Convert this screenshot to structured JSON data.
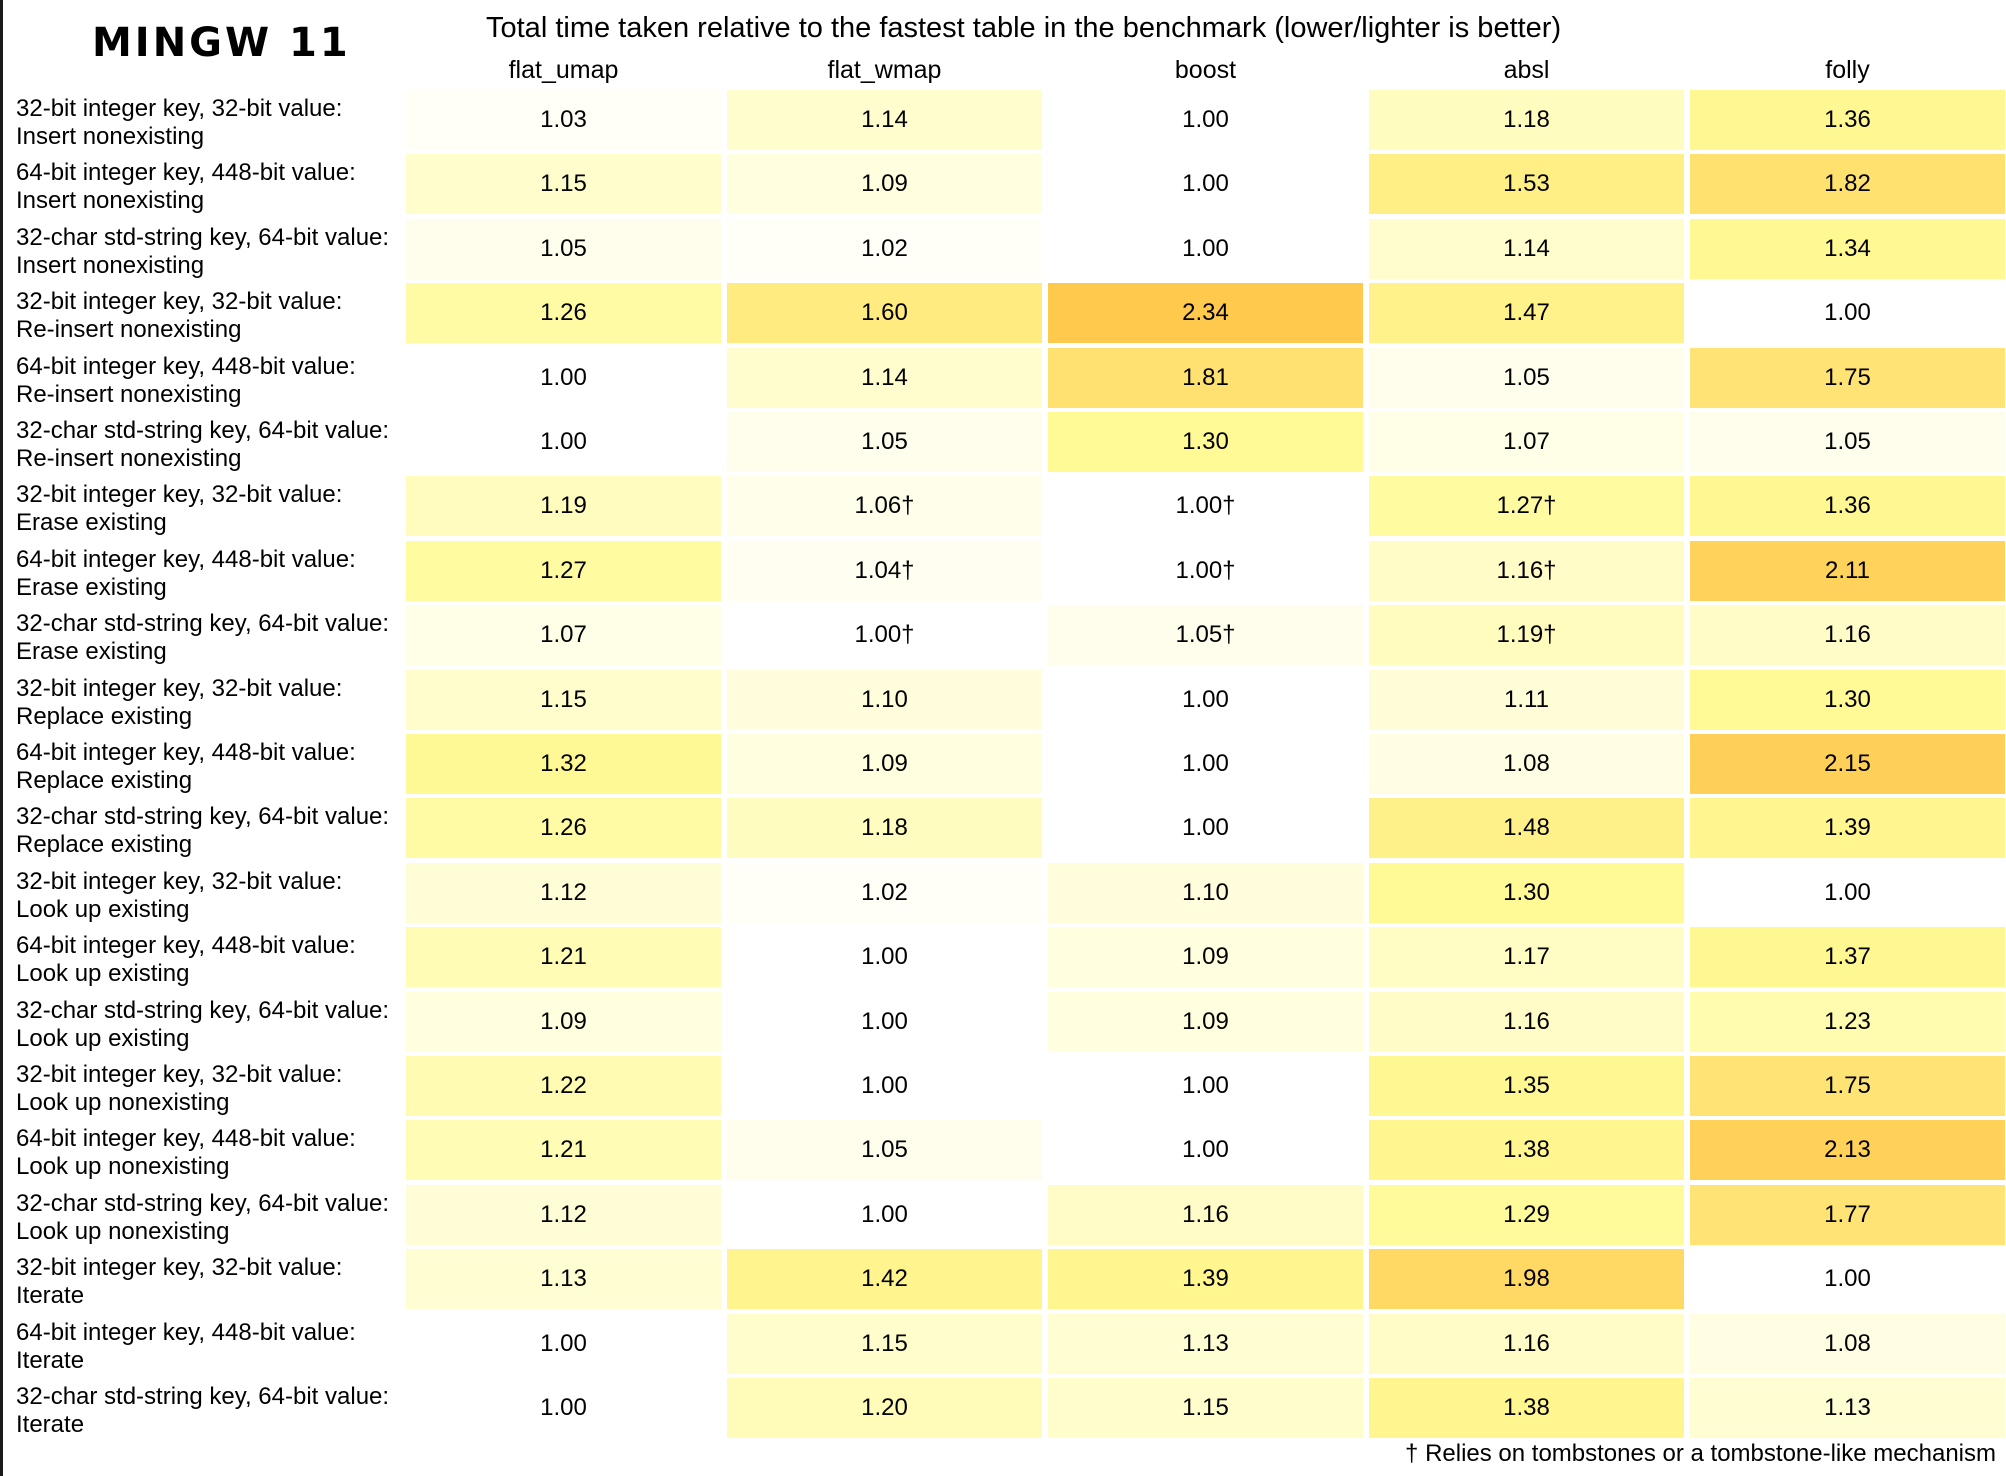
{
  "section_title": "MINGW 11",
  "footnote": "† Relies on tombstones or a tombstone-like mechanism",
  "chart_data": {
    "type": "heatmap",
    "title": "Total time taken relative to the fastest table in the benchmark (lower/lighter is better)",
    "columns": [
      "flat_umap",
      "flat_wmap",
      "boost",
      "absl",
      "folly"
    ],
    "rows": [
      {
        "label_line1": "32-bit integer key, 32-bit value:",
        "label_line2": "Insert nonexisting",
        "values": [
          1.03,
          1.14,
          1.0,
          1.18,
          1.36
        ],
        "display": [
          "1.03",
          "1.14",
          "1.00",
          "1.18",
          "1.36"
        ]
      },
      {
        "label_line1": "64-bit integer key, 448-bit value:",
        "label_line2": "Insert nonexisting",
        "values": [
          1.15,
          1.09,
          1.0,
          1.53,
          1.82
        ],
        "display": [
          "1.15",
          "1.09",
          "1.00",
          "1.53",
          "1.82"
        ]
      },
      {
        "label_line1": "32-char std-string key, 64-bit value:",
        "label_line2": "Insert nonexisting",
        "values": [
          1.05,
          1.02,
          1.0,
          1.14,
          1.34
        ],
        "display": [
          "1.05",
          "1.02",
          "1.00",
          "1.14",
          "1.34"
        ]
      },
      {
        "label_line1": "32-bit integer key, 32-bit value:",
        "label_line2": "Re-insert nonexisting",
        "values": [
          1.26,
          1.6,
          2.34,
          1.47,
          1.0
        ],
        "display": [
          "1.26",
          "1.60",
          "2.34",
          "1.47",
          "1.00"
        ]
      },
      {
        "label_line1": "64-bit integer key, 448-bit value:",
        "label_line2": "Re-insert nonexisting",
        "values": [
          1.0,
          1.14,
          1.81,
          1.05,
          1.75
        ],
        "display": [
          "1.00",
          "1.14",
          "1.81",
          "1.05",
          "1.75"
        ]
      },
      {
        "label_line1": "32-char std-string key, 64-bit value:",
        "label_line2": "Re-insert nonexisting",
        "values": [
          1.0,
          1.05,
          1.3,
          1.07,
          1.05
        ],
        "display": [
          "1.00",
          "1.05",
          "1.30",
          "1.07",
          "1.05"
        ]
      },
      {
        "label_line1": "32-bit integer key, 32-bit value:",
        "label_line2": "Erase existing",
        "values": [
          1.19,
          1.06,
          1.0,
          1.27,
          1.36
        ],
        "display": [
          "1.19",
          "1.06†",
          "1.00†",
          "1.27†",
          "1.36"
        ]
      },
      {
        "label_line1": "64-bit integer key, 448-bit value:",
        "label_line2": "Erase existing",
        "values": [
          1.27,
          1.04,
          1.0,
          1.16,
          2.11
        ],
        "display": [
          "1.27",
          "1.04†",
          "1.00†",
          "1.16†",
          "2.11"
        ]
      },
      {
        "label_line1": "32-char std-string key, 64-bit value:",
        "label_line2": "Erase existing",
        "values": [
          1.07,
          1.0,
          1.05,
          1.19,
          1.16
        ],
        "display": [
          "1.07",
          "1.00†",
          "1.05†",
          "1.19†",
          "1.16"
        ]
      },
      {
        "label_line1": "32-bit integer key, 32-bit value:",
        "label_line2": "Replace existing",
        "values": [
          1.15,
          1.1,
          1.0,
          1.11,
          1.3
        ],
        "display": [
          "1.15",
          "1.10",
          "1.00",
          "1.11",
          "1.30"
        ]
      },
      {
        "label_line1": "64-bit integer key, 448-bit value:",
        "label_line2": "Replace existing",
        "values": [
          1.32,
          1.09,
          1.0,
          1.08,
          2.15
        ],
        "display": [
          "1.32",
          "1.09",
          "1.00",
          "1.08",
          "2.15"
        ]
      },
      {
        "label_line1": "32-char std-string key, 64-bit value:",
        "label_line2": "Replace existing",
        "values": [
          1.26,
          1.18,
          1.0,
          1.48,
          1.39
        ],
        "display": [
          "1.26",
          "1.18",
          "1.00",
          "1.48",
          "1.39"
        ]
      },
      {
        "label_line1": "32-bit integer key, 32-bit value:",
        "label_line2": "Look up existing",
        "values": [
          1.12,
          1.02,
          1.1,
          1.3,
          1.0
        ],
        "display": [
          "1.12",
          "1.02",
          "1.10",
          "1.30",
          "1.00"
        ]
      },
      {
        "label_line1": "64-bit integer key, 448-bit value:",
        "label_line2": "Look up existing",
        "values": [
          1.21,
          1.0,
          1.09,
          1.17,
          1.37
        ],
        "display": [
          "1.21",
          "1.00",
          "1.09",
          "1.17",
          "1.37"
        ]
      },
      {
        "label_line1": "32-char std-string key, 64-bit value:",
        "label_line2": "Look up existing",
        "values": [
          1.09,
          1.0,
          1.09,
          1.16,
          1.23
        ],
        "display": [
          "1.09",
          "1.00",
          "1.09",
          "1.16",
          "1.23"
        ]
      },
      {
        "label_line1": "32-bit integer key, 32-bit value:",
        "label_line2": "Look up nonexisting",
        "values": [
          1.22,
          1.0,
          1.0,
          1.35,
          1.75
        ],
        "display": [
          "1.22",
          "1.00",
          "1.00",
          "1.35",
          "1.75"
        ]
      },
      {
        "label_line1": "64-bit integer key, 448-bit value:",
        "label_line2": "Look up nonexisting",
        "values": [
          1.21,
          1.05,
          1.0,
          1.38,
          2.13
        ],
        "display": [
          "1.21",
          "1.05",
          "1.00",
          "1.38",
          "2.13"
        ]
      },
      {
        "label_line1": "32-char std-string key, 64-bit value:",
        "label_line2": "Look up nonexisting",
        "values": [
          1.12,
          1.0,
          1.16,
          1.29,
          1.77
        ],
        "display": [
          "1.12",
          "1.00",
          "1.16",
          "1.29",
          "1.77"
        ]
      },
      {
        "label_line1": "32-bit integer key, 32-bit value:",
        "label_line2": "Iterate",
        "values": [
          1.13,
          1.42,
          1.39,
          1.98,
          1.0
        ],
        "display": [
          "1.13",
          "1.42",
          "1.39",
          "1.98",
          "1.00"
        ]
      },
      {
        "label_line1": "64-bit integer key, 448-bit value:",
        "label_line2": "Iterate",
        "values": [
          1.0,
          1.15,
          1.13,
          1.16,
          1.08
        ],
        "display": [
          "1.00",
          "1.15",
          "1.13",
          "1.16",
          "1.08"
        ]
      },
      {
        "label_line1": "32-char std-string key, 64-bit value:",
        "label_line2": "Iterate",
        "values": [
          1.0,
          1.2,
          1.15,
          1.38,
          1.13
        ],
        "display": [
          "1.00",
          "1.20",
          "1.15",
          "1.38",
          "1.13"
        ]
      }
    ],
    "color_scale": {
      "low": "#ffffff",
      "mid": "#fffa96",
      "high": "#ffc94d"
    },
    "text_color": "#000000"
  }
}
